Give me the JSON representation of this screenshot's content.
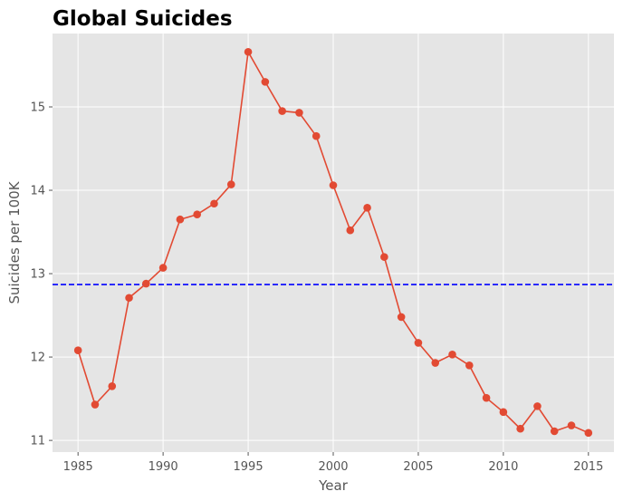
{
  "colors": {
    "plot_background": "#e5e5e5",
    "grid": "#ffffff",
    "series": "#e24a33",
    "reference_line": "#0000ff"
  },
  "chart_data": {
    "type": "line",
    "title": "Global Suicides",
    "xlabel": "Year",
    "ylabel": "Suicides per 100K",
    "xlim": [
      1983.5,
      2016.5
    ],
    "ylim": [
      10.86,
      15.88
    ],
    "xticks": [
      1985,
      1990,
      1995,
      2000,
      2005,
      2010,
      2015
    ],
    "yticks": [
      11,
      12,
      13,
      14,
      15
    ],
    "grid": true,
    "x": [
      1985,
      1986,
      1987,
      1988,
      1989,
      1990,
      1991,
      1992,
      1993,
      1994,
      1995,
      1996,
      1997,
      1998,
      1999,
      2000,
      2001,
      2002,
      2003,
      2004,
      2005,
      2006,
      2007,
      2008,
      2009,
      2010,
      2011,
      2012,
      2013,
      2014,
      2015
    ],
    "y": [
      12.08,
      11.43,
      11.65,
      12.71,
      12.88,
      13.07,
      13.65,
      13.71,
      13.84,
      14.07,
      15.66,
      15.3,
      14.95,
      14.93,
      14.65,
      14.06,
      13.52,
      13.79,
      13.2,
      12.48,
      12.17,
      11.93,
      12.03,
      11.9,
      11.51,
      11.34,
      11.14,
      11.41,
      11.11,
      11.18,
      11.09
    ],
    "reference_line": {
      "y": 12.87,
      "style": "dashed"
    }
  }
}
